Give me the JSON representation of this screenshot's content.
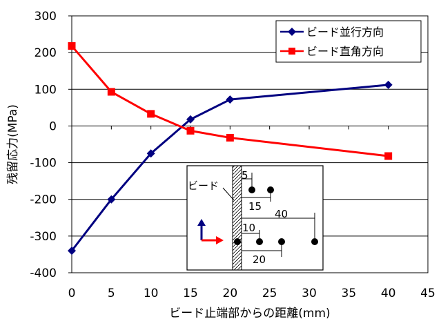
{
  "chart_data": {
    "type": "line",
    "title": "",
    "xlabel": "ビード止端部からの距離(mm)",
    "ylabel": "残留応力(MPa)",
    "xlim": [
      0,
      45
    ],
    "ylim": [
      -400,
      300
    ],
    "xticks": [
      0,
      5,
      10,
      15,
      20,
      25,
      30,
      35,
      40,
      45
    ],
    "yticks": [
      300,
      200,
      100,
      0,
      -100,
      -200,
      -300,
      -400
    ],
    "ytick_labels": [
      "300",
      "200",
      "100",
      "0",
      "-100",
      "-200",
      "-300",
      "-400"
    ],
    "grid": true,
    "legend_position": "top-right",
    "series": [
      {
        "name": "ビード並行方向",
        "color": "#000080",
        "marker": "diamond",
        "x": [
          0,
          5,
          10,
          15,
          20,
          40
        ],
        "y": [
          -340,
          -200,
          -75,
          18,
          72,
          112
        ]
      },
      {
        "name": "ビード直角方向",
        "color": "#ff0000",
        "marker": "square",
        "x": [
          0,
          5,
          10,
          15,
          20,
          40
        ],
        "y": [
          218,
          93,
          33,
          -13,
          -32,
          -82
        ]
      }
    ],
    "inset": {
      "bead_label": "ビード",
      "dimension_labels": [
        "5",
        "15",
        "40",
        "10",
        "20"
      ]
    }
  }
}
